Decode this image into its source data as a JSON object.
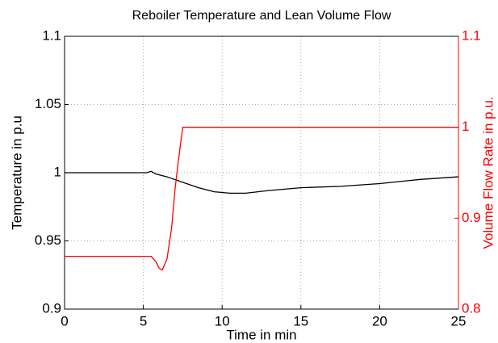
{
  "chart_data": {
    "type": "line",
    "title": "Reboiler Temperature and Lean Volume Flow",
    "xlabel": "Time in min",
    "ylabel": "Temperature in p.u",
    "y2label": "Volume Flow Rate in p.u.",
    "xlim": [
      0,
      25
    ],
    "xticks": [
      0,
      5,
      10,
      15,
      20,
      25
    ],
    "ylim": [
      0.9,
      1.1
    ],
    "yticks": [
      0.9,
      0.95,
      1,
      1.05,
      1.1
    ],
    "y2lim": [
      0.8,
      1.1
    ],
    "y2ticks": [
      0.8,
      0.9,
      1,
      1.1
    ],
    "grid": true,
    "y2color": "#ff0000",
    "series": [
      {
        "color": "#000000",
        "x": [
          0,
          5.2,
          5.5,
          5.8,
          6.5,
          7.5,
          8.5,
          9.5,
          10.5,
          11.5,
          13,
          15,
          17.5,
          20,
          22.5,
          25
        ],
        "values": [
          1.0,
          1.0,
          1.001,
          0.999,
          0.997,
          0.993,
          0.989,
          0.986,
          0.985,
          0.985,
          0.987,
          0.989,
          0.99,
          0.992,
          0.995,
          0.997
        ]
      },
      {
        "color": "#ff0000",
        "axis": "y2",
        "x": [
          0,
          5.5,
          5.8,
          6.0,
          6.2,
          6.5,
          6.8,
          7.0,
          7.2,
          7.5,
          25
        ],
        "values": [
          0.858,
          0.858,
          0.852,
          0.845,
          0.843,
          0.855,
          0.89,
          0.93,
          0.96,
          1.0,
          1.0
        ]
      }
    ]
  }
}
